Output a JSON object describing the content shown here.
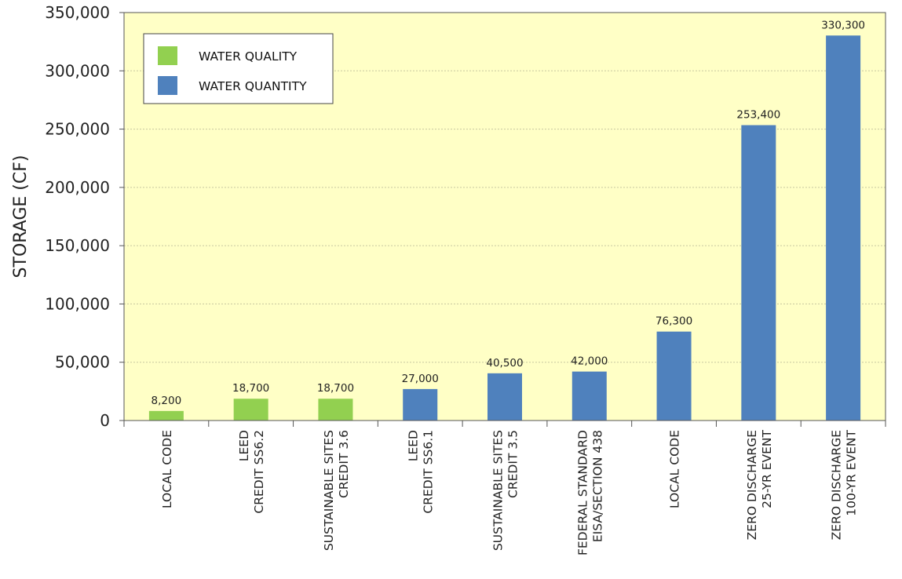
{
  "chart_data": {
    "type": "bar",
    "title": "",
    "xlabel": "",
    "ylabel": "STORAGE (CF)",
    "ylim": [
      0,
      350000
    ],
    "yticks": [
      "0",
      "50,000",
      "100,000",
      "150,000",
      "200,000",
      "250,000",
      "300,000",
      "350,000"
    ],
    "ytick_values": [
      0,
      50000,
      100000,
      150000,
      200000,
      250000,
      300000,
      350000
    ],
    "grid": true,
    "legend_position": "top-left",
    "colors": {
      "plot_background": "#ffffc6",
      "water_quality": "#92d050",
      "water_quantity": "#4f81bd",
      "grid": "#c8c8a0",
      "axis": "#555555"
    },
    "legend": [
      {
        "name": "WATER QUALITY",
        "color": "#92d050"
      },
      {
        "name": "WATER QUANTITY",
        "color": "#4f81bd"
      }
    ],
    "categories": [
      [
        "LOCAL CODE"
      ],
      [
        "LEED",
        "CREDIT SS6.2"
      ],
      [
        "SUSTAINABLE SITES",
        "CREDIT 3.6"
      ],
      [
        "LEED",
        "CREDIT SS6.1"
      ],
      [
        "SUSTAINABLE SITES",
        "CREDIT 3.5"
      ],
      [
        "FEDERAL STANDARD",
        "EISA/SECTION 438"
      ],
      [
        "LOCAL CODE"
      ],
      [
        "ZERO DISCHARGE",
        "25-YR EVENT"
      ],
      [
        "ZERO DISCHARGE",
        "100-YR EVENT"
      ]
    ],
    "values": [
      8200,
      18700,
      18700,
      27000,
      40500,
      42000,
      76300,
      253400,
      330300
    ],
    "value_labels": [
      "8,200",
      "18,700",
      "18,700",
      "27,000",
      "40,500",
      "42,000",
      "76,300",
      "253,400",
      "330,300"
    ],
    "series_of_bar": [
      "WATER QUALITY",
      "WATER QUALITY",
      "WATER QUALITY",
      "WATER QUANTITY",
      "WATER QUANTITY",
      "WATER QUANTITY",
      "WATER QUANTITY",
      "WATER QUANTITY",
      "WATER QUANTITY"
    ]
  }
}
